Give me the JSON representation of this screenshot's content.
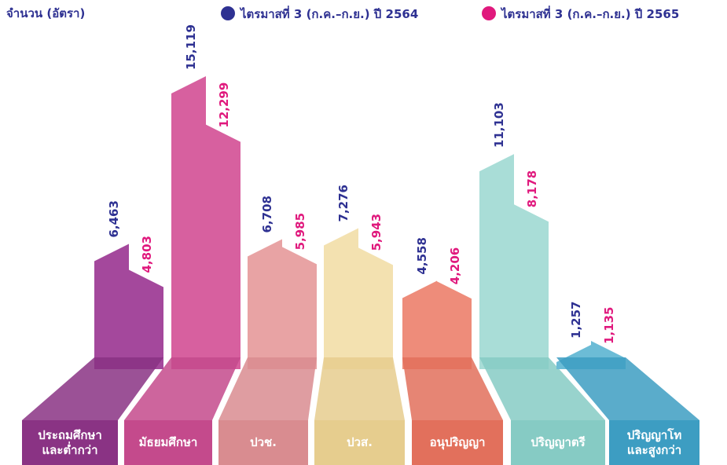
{
  "chart_data": {
    "type": "step-columns",
    "y_label": "จำนวน (อัตรา)",
    "categories": [
      "ประถมศึกษา\nและต่ำกว่า",
      "มัธยมศึกษา",
      "ปวช.",
      "ปวส.",
      "อนุปริญญา",
      "ปริญญาตรี",
      "ปริญญาโท\nและสูงกว่า"
    ],
    "colors": [
      "#a4489c",
      "#d7609f",
      "#e8a3a4",
      "#f3e1b0",
      "#ee8c7a",
      "#a9ddd7",
      "#6cbcd6"
    ],
    "label_colors": [
      "#8a3384",
      "#c44a8c",
      "#d98c90",
      "#e6cd8e",
      "#e2705c",
      "#86cbc4",
      "#3d9dc2"
    ],
    "series": [
      {
        "name": "ไตรมาสที่ 3 (ก.ค.–ก.ย.) ปี 2564",
        "color": "#2e3192",
        "values": [
          6463,
          15119,
          6708,
          7276,
          4558,
          11103,
          1257
        ],
        "value_labels": [
          "6,463",
          "15,119",
          "6,708",
          "7,276",
          "4,558",
          "11,103",
          "1,257"
        ]
      },
      {
        "name": "ไตรมาสที่ 3 (ก.ค.–ก.ย.) ปี 2565",
        "color": "#e0197d",
        "values": [
          4803,
          12299,
          5985,
          5943,
          4206,
          8178,
          1135
        ],
        "value_labels": [
          "4,803",
          "12,299",
          "5,985",
          "5,943",
          "4,206",
          "8,178",
          "1,135"
        ]
      }
    ]
  }
}
